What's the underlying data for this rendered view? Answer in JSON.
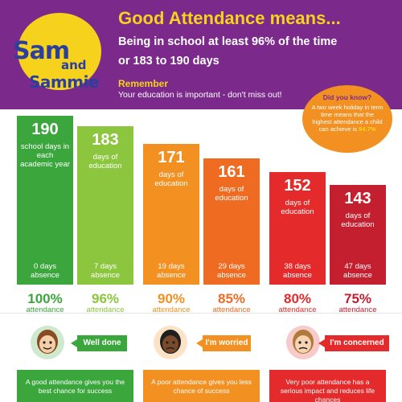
{
  "header": {
    "logo": {
      "sam": "Sam",
      "and": "and",
      "sammie": "Sammie"
    },
    "title": "Good Attendance means...",
    "line1": "Being in school at least 96% of the time",
    "line2": "or 183 to 190 days",
    "remember_title": "Remember",
    "remember_text": "Your education is important - don't miss out!"
  },
  "did_you_know": {
    "title": "Did you know?",
    "text": "A two week holiday in term time means that the highest attendance a child can achieve is",
    "highlight": "94.7%"
  },
  "chart_data": {
    "type": "bar",
    "categories": [
      "100%",
      "96%",
      "90%",
      "85%",
      "80%",
      "75%"
    ],
    "series": [
      {
        "values": [
          190,
          183,
          171,
          161,
          152,
          143
        ]
      }
    ],
    "absence_days": [
      0,
      7,
      19,
      29,
      38,
      47
    ]
  },
  "bars": [
    {
      "days": "190",
      "desc": "school days in each academic year",
      "absence": "0 days absence",
      "pct": "100%",
      "pct_label": "attendance",
      "color": "#3aa63c",
      "pct_color": "#3aa63c"
    },
    {
      "days": "183",
      "desc": "days of education",
      "absence": "7 days absence",
      "pct": "96%",
      "pct_label": "attendance",
      "color": "#8cc63f",
      "pct_color": "#8cc63f"
    },
    {
      "days": "171",
      "desc": "days of education",
      "absence": "19 days absence",
      "pct": "90%",
      "pct_label": "attendance",
      "color": "#f29121",
      "pct_color": "#f29121"
    },
    {
      "days": "161",
      "desc": "days of education",
      "absence": "29 days absence",
      "pct": "85%",
      "pct_label": "attendance",
      "color": "#ef6b22",
      "pct_color": "#ef6b22"
    },
    {
      "days": "152",
      "desc": "days of education",
      "absence": "38 days absence",
      "pct": "80%",
      "pct_label": "attendance",
      "color": "#e42a2a",
      "pct_color": "#e42a2a"
    },
    {
      "days": "143",
      "desc": "days of education",
      "absence": "47 days absence",
      "pct": "75%",
      "pct_label": "attendance",
      "color": "#c41f2f",
      "pct_color": "#c41f2f"
    }
  ],
  "faces": [
    {
      "icon": "smiling-girl-face-icon",
      "callout": "Well done",
      "color": "#3aa63c",
      "footer": "A good attendance gives you the best chance for success"
    },
    {
      "icon": "worried-boy-face-icon",
      "callout": "I'm worried",
      "color": "#f29121",
      "footer": "A poor attendance gives you less chance of success"
    },
    {
      "icon": "concerned-woman-face-icon",
      "callout": "I'm concerned",
      "color": "#e42a2a",
      "footer": "Very poor attendance has a serious impact and reduces life chances"
    }
  ]
}
